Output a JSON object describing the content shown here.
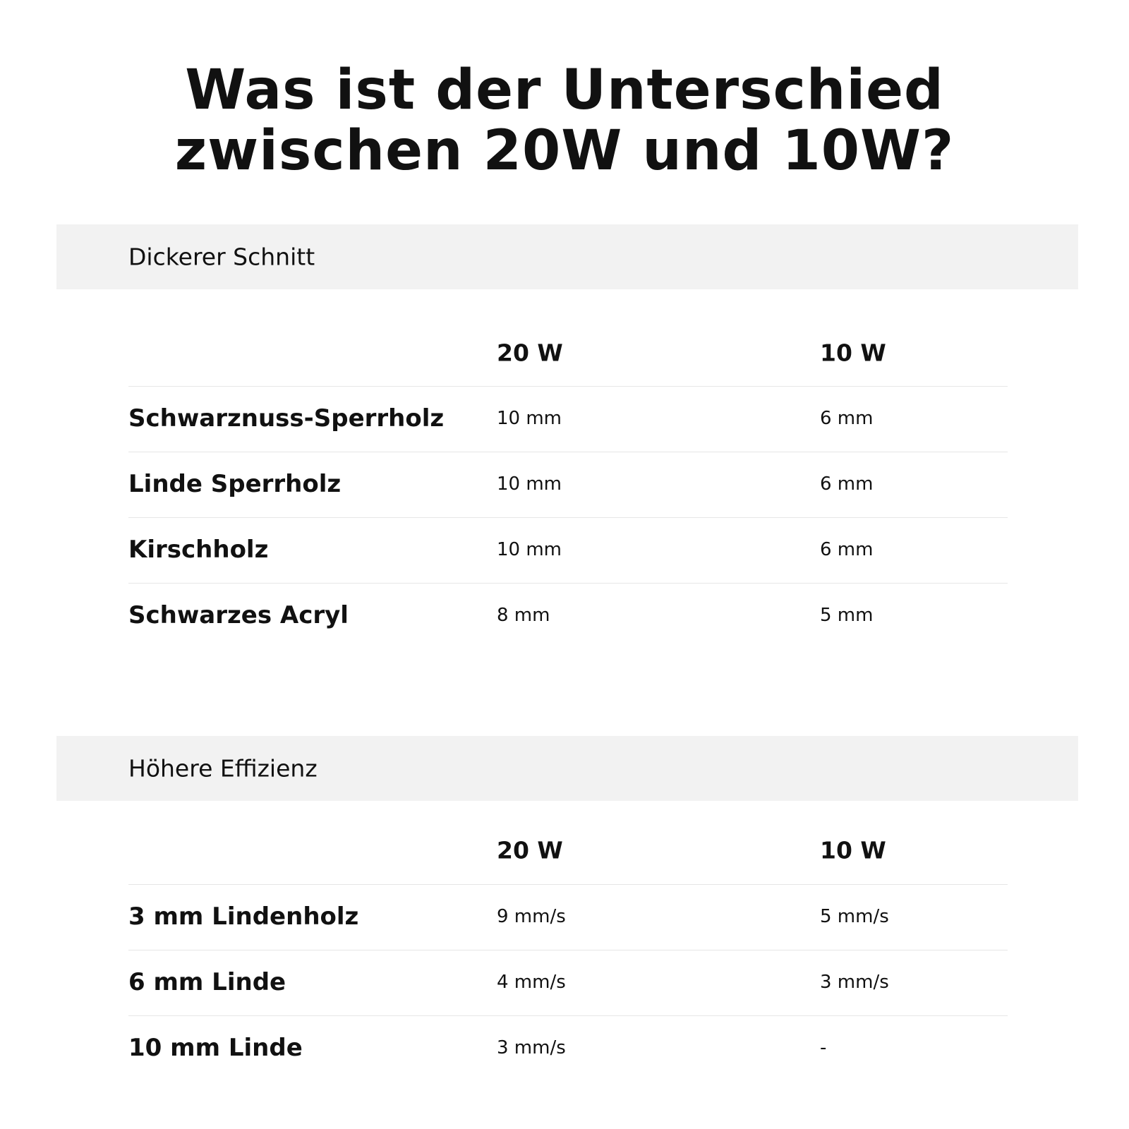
{
  "title": [
    "Was ist der Unterschied",
    "zwischen 20W und 10W?"
  ],
  "sections": [
    {
      "header": "Dickerer Schnitt",
      "columns": [
        "20 W",
        "10 W"
      ],
      "rows": [
        [
          "Schwarznuss-Sperrholz",
          "10 mm",
          "6 mm"
        ],
        [
          "Linde Sperrholz",
          "10 mm",
          "6 mm"
        ],
        [
          "Kirschholz",
          "10 mm",
          "6 mm"
        ],
        [
          "Schwarzes Acryl",
          "8 mm",
          "5 mm"
        ]
      ]
    },
    {
      "header": "Höhere Effizienz",
      "columns": [
        "20 W",
        "10 W"
      ],
      "rows": [
        [
          "3 mm Lindenholz",
          "9 mm/s",
          "5 mm/s"
        ],
        [
          "6 mm Linde",
          "4 mm/s",
          "3 mm/s"
        ],
        [
          "10 mm Linde",
          "3 mm/s",
          "-"
        ]
      ]
    }
  ]
}
